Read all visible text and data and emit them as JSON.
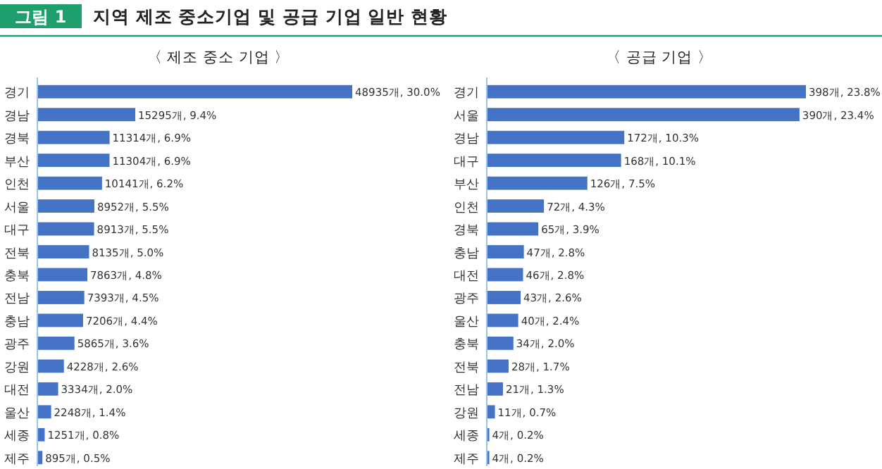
{
  "chart_data": [
    {
      "type": "bar",
      "orientation": "horizontal",
      "title": "〈 제조 중소 기업 〉",
      "annotations": [
        "그림 1",
        "지역 제조 중소기업 및 공급 기업 일반 현황"
      ],
      "categories": [
        "경기",
        "경남",
        "경북",
        "부산",
        "인천",
        "서울",
        "대구",
        "전북",
        "충북",
        "전남",
        "충남",
        "광주",
        "강원",
        "대전",
        "울산",
        "세종",
        "제주"
      ],
      "values": [
        48935,
        15295,
        11314,
        11304,
        10141,
        8952,
        8913,
        8135,
        7863,
        7393,
        7206,
        5865,
        4228,
        3334,
        2248,
        1251,
        895
      ],
      "value_labels": [
        "48935개, 30.0%",
        "15295개, 9.4%",
        "11314개, 6.9%",
        "11304개, 6.9%",
        "10141개, 6.2%",
        "8952개, 5.5%",
        "8913개, 5.5%",
        "8135개, 5.0%",
        "7863개, 4.8%",
        "7393개, 4.5%",
        "7206개, 4.4%",
        "5865개, 3.6%",
        "4228개, 2.6%",
        "3334개, 2.0%",
        "2248개, 1.4%",
        "1251개, 0.8%",
        "895개, 0.5%"
      ],
      "color": "#4472c4"
    },
    {
      "type": "bar",
      "orientation": "horizontal",
      "title": "〈 공급 기업 〉",
      "categories": [
        "경기",
        "서울",
        "경남",
        "대구",
        "부산",
        "인천",
        "경북",
        "충남",
        "대전",
        "광주",
        "울산",
        "충북",
        "전북",
        "전남",
        "강원",
        "세종",
        "제주"
      ],
      "values": [
        398,
        390,
        172,
        168,
        126,
        72,
        65,
        47,
        46,
        43,
        40,
        34,
        28,
        21,
        11,
        4,
        4
      ],
      "value_labels": [
        "398개, 23.8%",
        "390개, 23.4%",
        "172개, 10.3%",
        "168개, 10.1%",
        "126개, 7.5%",
        "72개, 4.3%",
        "65개, 3.9%",
        "47개, 2.8%",
        "46개, 2.8%",
        "43개, 2.6%",
        "40개, 2.4%",
        "34개, 2.0%",
        "28개, 1.7%",
        "21개, 1.3%",
        "11개, 0.7%",
        "4개, 0.2%",
        "4개, 0.2%"
      ],
      "color": "#4472c4"
    }
  ]
}
